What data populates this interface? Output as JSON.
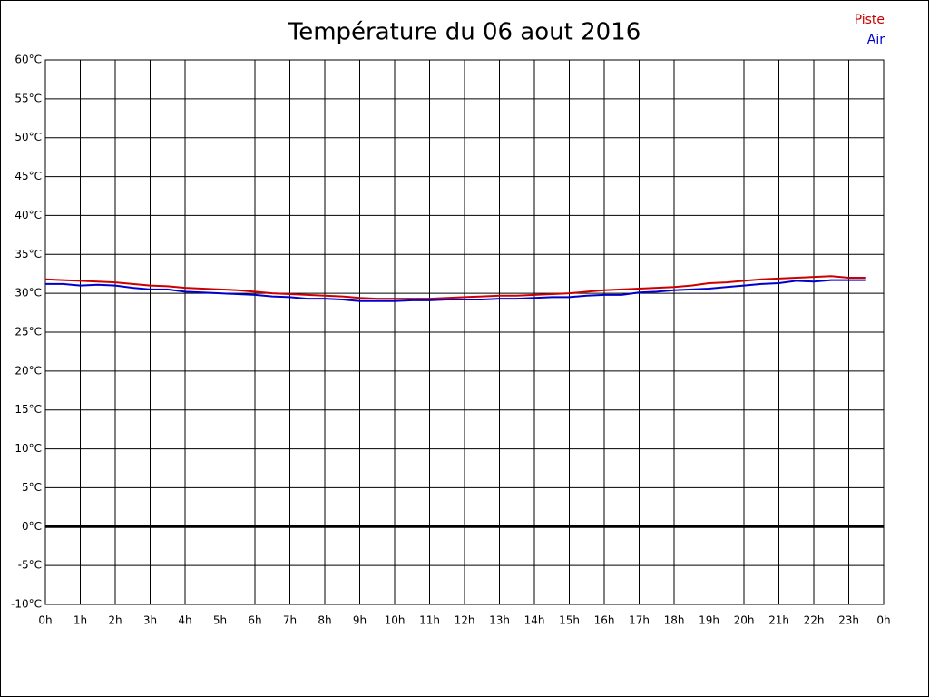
{
  "chart_data": {
    "type": "line",
    "title": "Température du 06 aout 2016",
    "x": [
      0,
      0.5,
      1,
      1.5,
      2,
      2.5,
      3,
      3.5,
      4,
      4.5,
      5,
      5.5,
      6,
      6.5,
      7,
      7.5,
      8,
      8.5,
      9,
      9.5,
      10,
      10.5,
      11,
      11.5,
      12,
      12.5,
      13,
      13.5,
      14,
      14.5,
      15,
      15.5,
      16,
      16.5,
      17,
      17.5,
      18,
      18.5,
      19,
      19.5,
      20,
      20.5,
      21,
      21.5,
      22,
      22.5,
      23,
      23.5
    ],
    "series": [
      {
        "name": "Piste",
        "color": "#cc0000",
        "values": [
          31.8,
          31.7,
          31.6,
          31.5,
          31.4,
          31.2,
          31.0,
          30.9,
          30.7,
          30.6,
          30.5,
          30.4,
          30.2,
          30.0,
          29.9,
          29.8,
          29.7,
          29.6,
          29.4,
          29.3,
          29.3,
          29.3,
          29.3,
          29.4,
          29.5,
          29.6,
          29.7,
          29.7,
          29.8,
          29.9,
          30.0,
          30.2,
          30.4,
          30.5,
          30.6,
          30.7,
          30.8,
          31.0,
          31.3,
          31.4,
          31.6,
          31.8,
          31.9,
          32.0,
          32.1,
          32.2,
          32.0,
          32.0
        ]
      },
      {
        "name": "Air",
        "color": "#0000cc",
        "values": [
          31.2,
          31.2,
          31.0,
          31.1,
          31.0,
          30.7,
          30.5,
          30.5,
          30.2,
          30.1,
          30.0,
          29.9,
          29.8,
          29.6,
          29.5,
          29.3,
          29.3,
          29.2,
          29.0,
          29.0,
          29.0,
          29.1,
          29.1,
          29.2,
          29.2,
          29.2,
          29.3,
          29.3,
          29.4,
          29.5,
          29.5,
          29.7,
          29.8,
          29.8,
          30.1,
          30.2,
          30.4,
          30.5,
          30.6,
          30.8,
          31.0,
          31.2,
          31.3,
          31.6,
          31.5,
          31.7,
          31.7,
          31.7
        ]
      }
    ],
    "xlim": [
      0,
      24
    ],
    "xticks": [
      {
        "value": 0,
        "label": "0h"
      },
      {
        "value": 1,
        "label": "1h"
      },
      {
        "value": 2,
        "label": "2h"
      },
      {
        "value": 3,
        "label": "3h"
      },
      {
        "value": 4,
        "label": "4h"
      },
      {
        "value": 5,
        "label": "5h"
      },
      {
        "value": 6,
        "label": "6h"
      },
      {
        "value": 7,
        "label": "7h"
      },
      {
        "value": 8,
        "label": "8h"
      },
      {
        "value": 9,
        "label": "9h"
      },
      {
        "value": 10,
        "label": "10h"
      },
      {
        "value": 11,
        "label": "11h"
      },
      {
        "value": 12,
        "label": "12h"
      },
      {
        "value": 13,
        "label": "13h"
      },
      {
        "value": 14,
        "label": "14h"
      },
      {
        "value": 15,
        "label": "15h"
      },
      {
        "value": 16,
        "label": "16h"
      },
      {
        "value": 17,
        "label": "17h"
      },
      {
        "value": 18,
        "label": "18h"
      },
      {
        "value": 19,
        "label": "19h"
      },
      {
        "value": 20,
        "label": "20h"
      },
      {
        "value": 21,
        "label": "21h"
      },
      {
        "value": 22,
        "label": "22h"
      },
      {
        "value": 23,
        "label": "23h"
      },
      {
        "value": 24,
        "label": "0h"
      }
    ],
    "ylim": [
      -10,
      60
    ],
    "yticks": [
      {
        "value": -10,
        "label": "-10°C"
      },
      {
        "value": -5,
        "label": "-5°C"
      },
      {
        "value": 0,
        "label": "0°C"
      },
      {
        "value": 5,
        "label": "5°C"
      },
      {
        "value": 10,
        "label": "10°C"
      },
      {
        "value": 15,
        "label": "15°C"
      },
      {
        "value": 20,
        "label": "20°C"
      },
      {
        "value": 25,
        "label": "25°C"
      },
      {
        "value": 30,
        "label": "30°C"
      },
      {
        "value": 35,
        "label": "35°C"
      },
      {
        "value": 40,
        "label": "40°C"
      },
      {
        "value": 45,
        "label": "45°C"
      },
      {
        "value": 50,
        "label": "50°C"
      },
      {
        "value": 55,
        "label": "55°C"
      },
      {
        "value": 60,
        "label": "60°C"
      }
    ],
    "grid": true,
    "legend": "top-right"
  }
}
